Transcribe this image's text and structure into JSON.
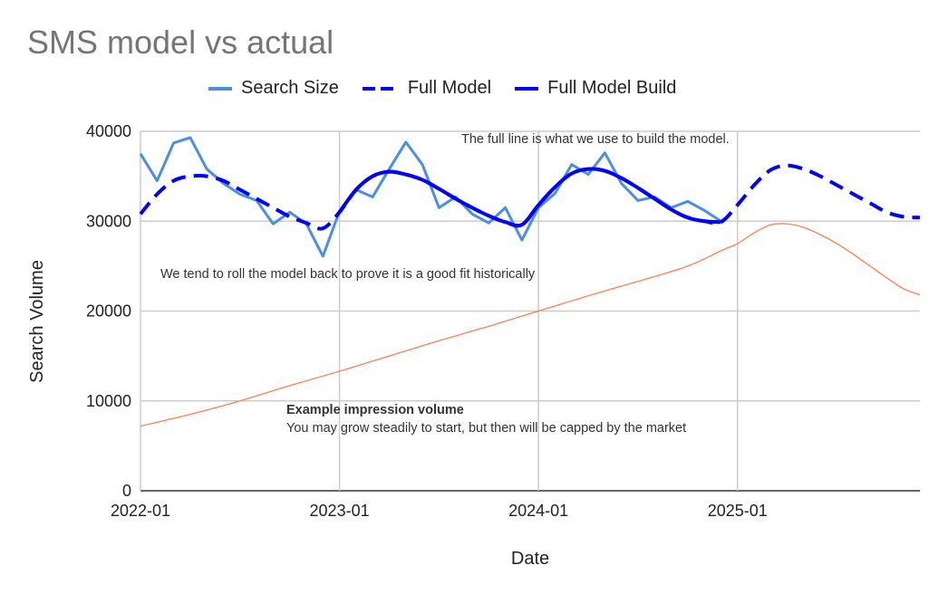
{
  "chart_data": {
    "type": "line",
    "title": "SMS model vs actual",
    "xlabel": "Date",
    "ylabel": "Search Volume",
    "ylim": [
      0,
      40000
    ],
    "yticks": [
      "0",
      "10000",
      "20000",
      "30000",
      "40000"
    ],
    "xticks": [
      {
        "label": "2022-01",
        "month": 0
      },
      {
        "label": "2023-01",
        "month": 12
      },
      {
        "label": "2024-01",
        "month": 24
      },
      {
        "label": "2025-01",
        "month": 36
      }
    ],
    "x_unit": "months since 2022-01",
    "xlim": [
      0,
      47
    ],
    "grid": true,
    "legend_position": "top",
    "series": [
      {
        "name": "Search Size",
        "color": "#4a8fe3",
        "style": "solid",
        "x": [
          0,
          1,
          2,
          3,
          4,
          5,
          6,
          7,
          8,
          9,
          10,
          11,
          12,
          13,
          14,
          15,
          16,
          17,
          18,
          19,
          20,
          21,
          22,
          23,
          24,
          25,
          26,
          27,
          28,
          29,
          30,
          31,
          32,
          33,
          34,
          35
        ],
        "values": [
          37500,
          34500,
          38700,
          39300,
          35800,
          34200,
          33000,
          32300,
          29700,
          31000,
          29700,
          26100,
          31100,
          33500,
          32700,
          35800,
          38800,
          36300,
          31500,
          32700,
          30800,
          29800,
          31500,
          27900,
          31500,
          33100,
          36300,
          35200,
          37600,
          34200,
          32300,
          32700,
          31500,
          32200,
          31200,
          30000
        ]
      },
      {
        "name": "Full Model",
        "color": "#0000ff",
        "style": "dashed",
        "x": [
          0,
          1,
          2,
          3,
          4,
          5,
          6,
          7,
          8,
          9,
          10,
          11,
          12,
          13,
          14,
          15,
          16,
          17,
          18,
          19,
          20,
          21,
          22,
          23,
          24,
          25,
          26,
          27,
          28,
          29,
          30,
          31,
          32,
          33,
          34,
          35,
          36,
          37,
          38,
          39,
          40,
          41,
          42,
          43,
          44,
          45,
          46,
          47
        ],
        "values": [
          30800,
          33000,
          34500,
          35000,
          35000,
          34500,
          33500,
          32500,
          31500,
          30500,
          29800,
          29200,
          31000,
          33500,
          35000,
          35500,
          35200,
          34600,
          33600,
          32500,
          31500,
          30600,
          29900,
          29600,
          31800,
          33800,
          35300,
          35800,
          35600,
          34800,
          33700,
          32500,
          31300,
          30400,
          30000,
          29900,
          31800,
          34000,
          35700,
          36200,
          35800,
          35000,
          34000,
          33000,
          32000,
          31000,
          30500,
          30400
        ]
      },
      {
        "name": "Full Model Build",
        "color": "#0000ff",
        "style": "solid",
        "x": [
          12,
          13,
          14,
          15,
          16,
          17,
          18,
          19,
          20,
          21,
          22,
          23,
          24,
          25,
          26,
          27,
          28,
          29,
          30,
          31,
          32,
          33,
          34,
          35
        ],
        "values": [
          31000,
          33500,
          35000,
          35500,
          35200,
          34600,
          33600,
          32500,
          31500,
          30600,
          29900,
          29600,
          31800,
          33800,
          35300,
          35800,
          35600,
          34800,
          33700,
          32500,
          31300,
          30400,
          30000,
          29900
        ]
      },
      {
        "name": "Example impression volume",
        "color": "#ff7f50",
        "style": "thin",
        "in_legend": false,
        "x": [
          0,
          3,
          6,
          9,
          12,
          15,
          18,
          21,
          24,
          27,
          30,
          33,
          35,
          36,
          37,
          38,
          39,
          40,
          41,
          42,
          43,
          44,
          45,
          46,
          47
        ],
        "values": [
          7200,
          8500,
          10000,
          11700,
          13300,
          15000,
          16700,
          18300,
          20000,
          21700,
          23300,
          25000,
          26700,
          27500,
          28700,
          29600,
          29700,
          29300,
          28500,
          27500,
          26300,
          25000,
          23700,
          22500,
          21800
        ]
      }
    ],
    "annotations": {
      "build_note": "The full line is what we use to build the model.",
      "rollback_note": "We tend to roll the model back to prove it is a good fit historically",
      "impression_title": "Example impression volume",
      "impression_note": "You may grow steadily to start, but then will be capped by the market"
    }
  }
}
